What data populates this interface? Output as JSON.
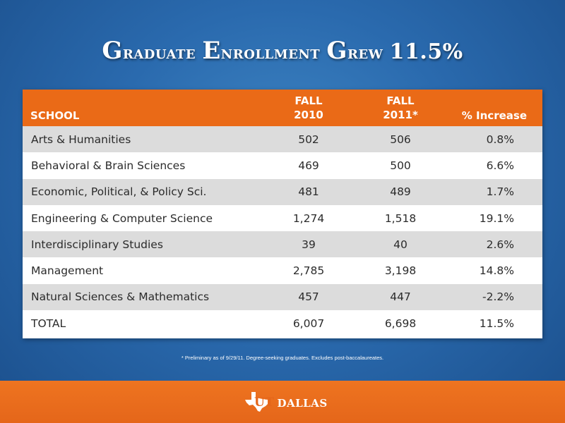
{
  "slide": {
    "title": {
      "words": [
        {
          "first": "G",
          "rest": "raduate"
        },
        {
          "first": "E",
          "rest": "nrollment"
        },
        {
          "first": "G",
          "rest": "rew"
        }
      ],
      "value": "11.5%"
    },
    "footnote": "* Preliminary as of 9/29/11.  Degree-seeking graduates.  Excludes post-baccalaureates."
  },
  "table": {
    "headers": {
      "school": "SCHOOL",
      "fall2010_l1": "FALL",
      "fall2010_l2": "2010",
      "fall2011_l1": "FALL",
      "fall2011_l2": "2011*",
      "pct": "% Increase"
    },
    "rows": [
      {
        "school": "Arts & Humanities",
        "fall2010": "502",
        "fall2011": "506",
        "pct": "0.8%"
      },
      {
        "school": "Behavioral & Brain Sciences",
        "fall2010": "469",
        "fall2011": "500",
        "pct": "6.6%"
      },
      {
        "school": "Economic, Political, & Policy Sci.",
        "fall2010": "481",
        "fall2011": "489",
        "pct": "1.7%"
      },
      {
        "school": "Engineering & Computer Science",
        "fall2010": "1,274",
        "fall2011": "1,518",
        "pct": "19.1%"
      },
      {
        "school": "Interdisciplinary Studies",
        "fall2010": "39",
        "fall2011": "40",
        "pct": "2.6%"
      },
      {
        "school": "Management",
        "fall2010": "2,785",
        "fall2011": "3,198",
        "pct": "14.8%"
      },
      {
        "school": "Natural Sciences & Mathematics",
        "fall2010": "457",
        "fall2011": "447",
        "pct": "-2.2%"
      },
      {
        "school": "TOTAL",
        "fall2010": "6,007",
        "fall2011": "6,698",
        "pct": "11.5%"
      }
    ]
  },
  "footer": {
    "logo_ut": "UT",
    "logo_text": "DALLAS",
    "logo_icon": "texas-shape-icon"
  },
  "colors": {
    "background": "#2a6aae",
    "header_orange": "#ea6a17",
    "footer_orange": "#ee7420",
    "row_shade": "#dcdcdc"
  }
}
